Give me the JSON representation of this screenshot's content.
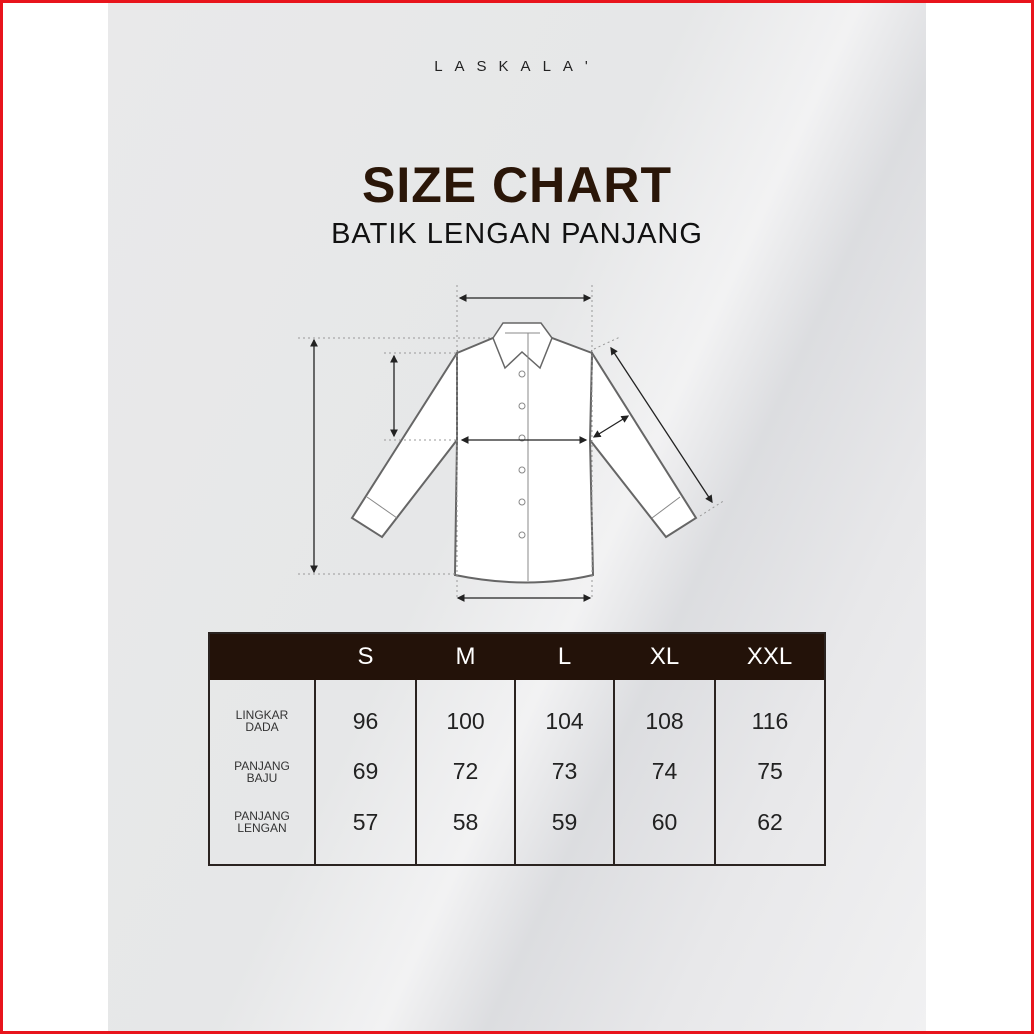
{
  "brand": {
    "logo": "LASKALA'"
  },
  "title": "SIZE CHART",
  "subtitle": "BATIK LENGAN PANJANG",
  "colors": {
    "title": "#2a1608",
    "header_bg": "#231209",
    "border": "#e8141c"
  },
  "table": {
    "sizes": [
      "S",
      "M",
      "L",
      "XL",
      "XXL"
    ],
    "rows": [
      {
        "label_line1": "LINGKAR",
        "label_line2": "DADA",
        "values": [
          "96",
          "100",
          "104",
          "108",
          "116"
        ]
      },
      {
        "label_line1": "PANJANG",
        "label_line2": "BAJU",
        "values": [
          "69",
          "72",
          "73",
          "74",
          "75"
        ]
      },
      {
        "label_line1": "PANJANG",
        "label_line2": "LENGAN",
        "values": [
          "57",
          "58",
          "59",
          "60",
          "62"
        ]
      }
    ]
  }
}
